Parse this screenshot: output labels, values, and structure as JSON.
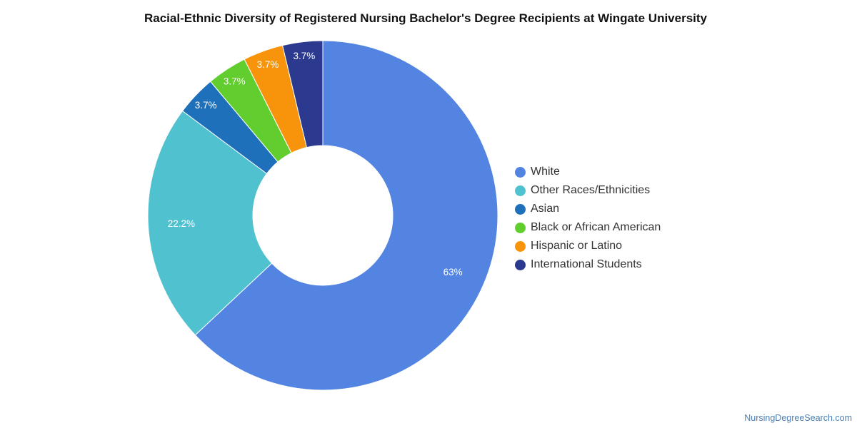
{
  "chart_data": {
    "type": "pie",
    "title": "Racial-Ethnic Diversity of Registered Nursing Bachelor's Degree Recipients at Wingate University",
    "donut": true,
    "legend_position": "right",
    "slices": [
      {
        "label": "White",
        "value": 63.0,
        "display": "63%",
        "color": "#5384e2"
      },
      {
        "label": "Other Races/Ethnicities",
        "value": 22.2,
        "display": "22.2%",
        "color": "#50c2cf"
      },
      {
        "label": "Asian",
        "value": 3.7,
        "display": "3.7%",
        "color": "#1f70ba"
      },
      {
        "label": "Black or African American",
        "value": 3.7,
        "display": "3.7%",
        "color": "#62cd2e"
      },
      {
        "label": "Hispanic or Latino",
        "value": 3.7,
        "display": "3.7%",
        "color": "#f7940c"
      },
      {
        "label": "International Students",
        "value": 3.7,
        "display": "3.7%",
        "color": "#2b3a8f"
      }
    ]
  },
  "source": "NursingDegreeSearch.com"
}
